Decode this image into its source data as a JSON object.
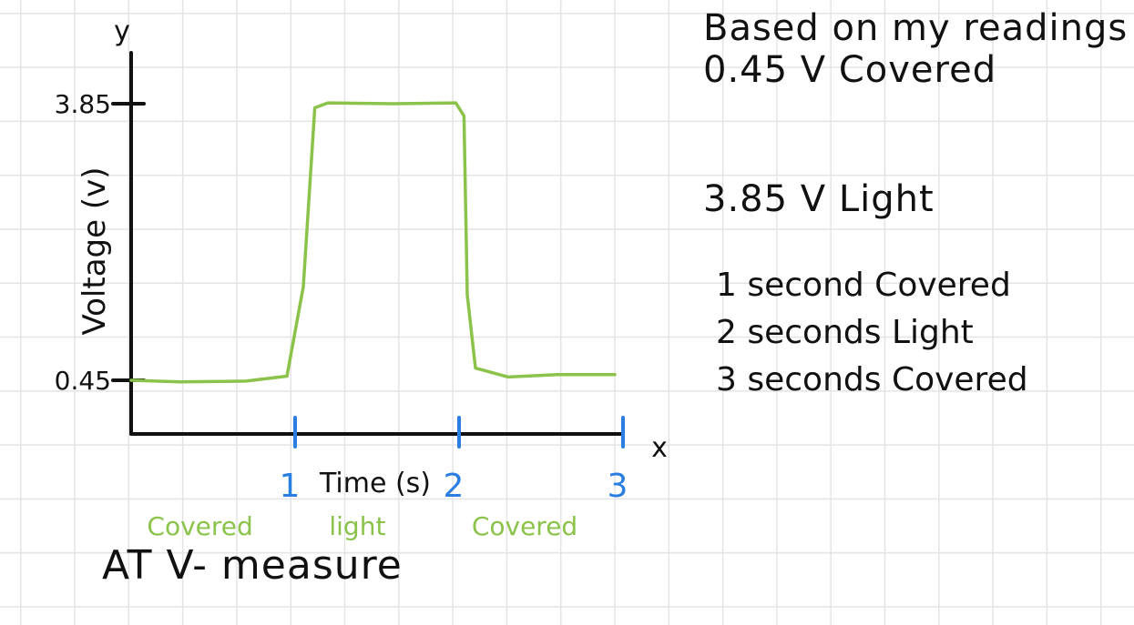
{
  "chart_data": {
    "type": "line",
    "xlabel": "Time (s)",
    "ylabel": "Voltage (v)",
    "x_axis_letter": "x",
    "y_axis_letter": "y",
    "x_ticks": [
      {
        "value": 1,
        "label": "1"
      },
      {
        "value": 2,
        "label": "2"
      },
      {
        "value": 3,
        "label": "3"
      }
    ],
    "y_ticks": [
      {
        "value": 0.45,
        "label": "0.45"
      },
      {
        "value": 3.85,
        "label": "3.85"
      }
    ],
    "xlim": [
      0,
      3
    ],
    "ylim": [
      0,
      4
    ],
    "series": [
      {
        "color": "#8bc34a",
        "points": [
          {
            "x": 0.0,
            "y": 0.45
          },
          {
            "x": 0.3,
            "y": 0.43
          },
          {
            "x": 0.7,
            "y": 0.44
          },
          {
            "x": 0.95,
            "y": 0.5
          },
          {
            "x": 1.05,
            "y": 1.6
          },
          {
            "x": 1.12,
            "y": 3.8
          },
          {
            "x": 1.2,
            "y": 3.86
          },
          {
            "x": 1.6,
            "y": 3.85
          },
          {
            "x": 1.98,
            "y": 3.86
          },
          {
            "x": 2.03,
            "y": 3.7
          },
          {
            "x": 2.05,
            "y": 1.5
          },
          {
            "x": 2.1,
            "y": 0.6
          },
          {
            "x": 2.3,
            "y": 0.49
          },
          {
            "x": 2.6,
            "y": 0.52
          },
          {
            "x": 2.95,
            "y": 0.52
          }
        ]
      }
    ],
    "region_labels": [
      {
        "text": "Covered",
        "x_center": 0.42
      },
      {
        "text": "light",
        "x_center": 1.38
      },
      {
        "text": "Covered",
        "x_center": 2.4
      }
    ]
  },
  "notes": {
    "heading": "Based on my readings",
    "line_covered": "0.45 V  Covered",
    "line_light": "3.85 V  Light",
    "list": [
      "1 second  Covered",
      "2 seconds  Light",
      "3 seconds  Covered"
    ]
  },
  "footer_title": "AT V- measure",
  "colors": {
    "curve": "#8bc34a",
    "region_label": "#8bc34a",
    "x_tick": "#2a7de1",
    "axis": "#111111"
  }
}
